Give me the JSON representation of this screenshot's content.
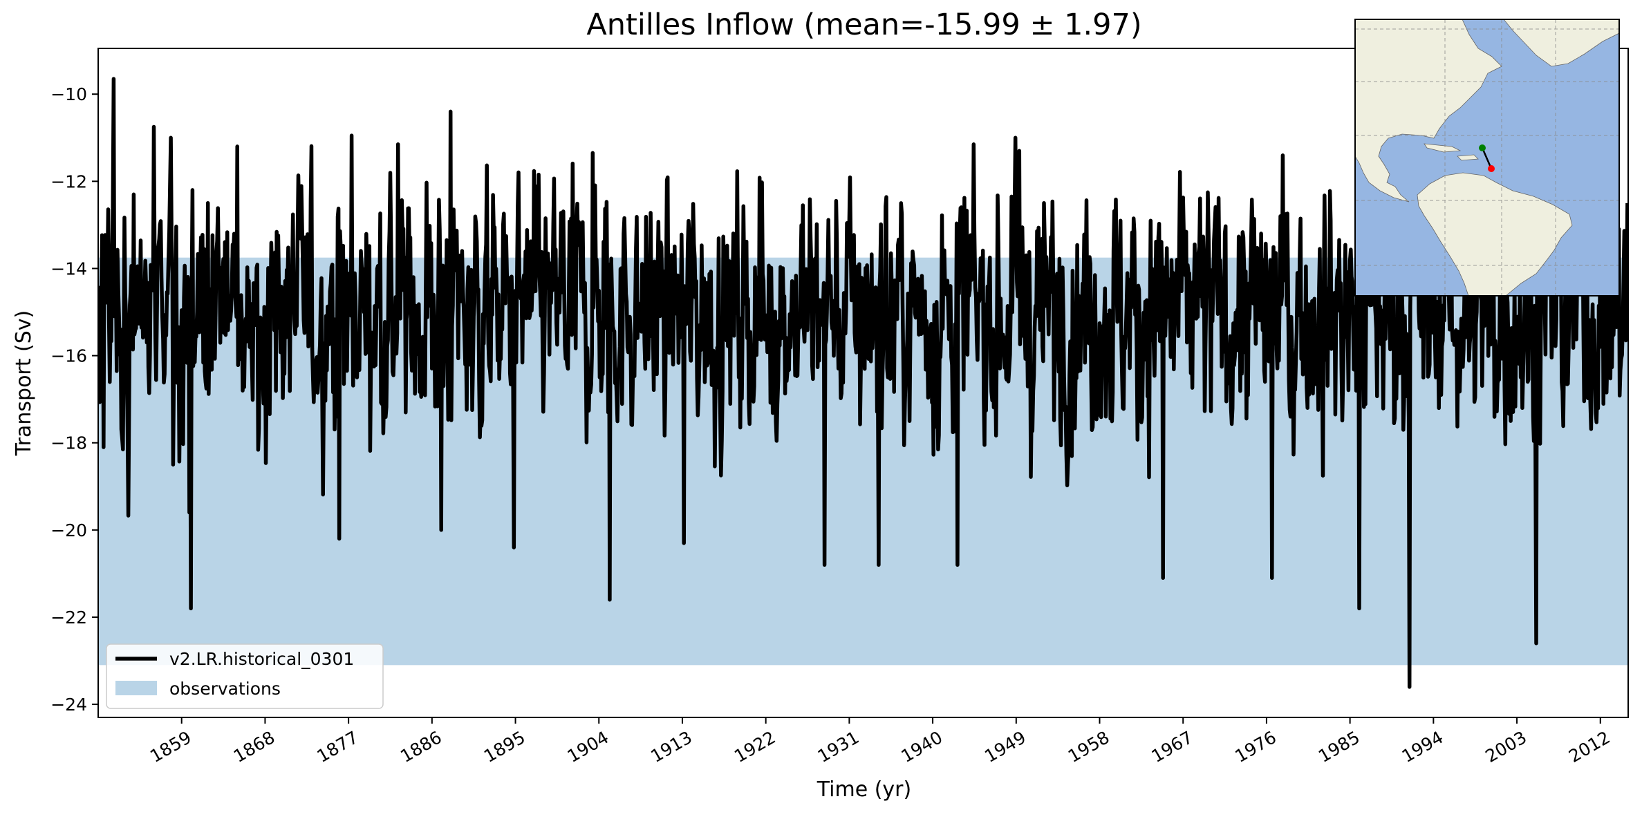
{
  "chart_data": {
    "type": "line",
    "title": "Antilles Inflow (mean=-15.99 ± 1.97)",
    "xlabel": "Time (yr)",
    "ylabel": "Transport (Sv)",
    "xlim": [
      1850,
      2015
    ],
    "ylim": [
      -24.3,
      -8.95
    ],
    "xticks": [
      1859,
      1868,
      1877,
      1886,
      1895,
      1904,
      1913,
      1922,
      1931,
      1940,
      1949,
      1958,
      1967,
      1976,
      1985,
      1994,
      2003,
      2012
    ],
    "yticks": [
      -10,
      -12,
      -14,
      -16,
      -18,
      -20,
      -22,
      -24
    ],
    "grid": false,
    "legend_location": "lower left",
    "observations_band": {
      "name": "observations",
      "y_low": -23.1,
      "y_high": -13.75,
      "color": "#b9d4e7"
    },
    "series": [
      {
        "name": "v2.LR.historical_0301",
        "color": "#000000",
        "sampling": "monthly",
        "x_start": 1850.0,
        "x_end": 2014.92,
        "mean": -15.99,
        "std": 1.97,
        "anchor_points": [
          {
            "x": 1850.0,
            "y": -16.6
          },
          {
            "x": 1850.3,
            "y": -14.7
          },
          {
            "x": 1850.6,
            "y": -18.1
          },
          {
            "x": 1851.7,
            "y": -9.65
          },
          {
            "x": 1853.8,
            "y": -12.3
          },
          {
            "x": 1856.0,
            "y": -10.75
          },
          {
            "x": 1858.1,
            "y": -18.5
          },
          {
            "x": 1859.8,
            "y": -19.6
          },
          {
            "x": 1860.0,
            "y": -21.8
          },
          {
            "x": 1865.0,
            "y": -11.2
          },
          {
            "x": 1876.0,
            "y": -20.2
          },
          {
            "x": 1877.3,
            "y": -10.95
          },
          {
            "x": 1882.3,
            "y": -11.15
          },
          {
            "x": 1887.0,
            "y": -20.0
          },
          {
            "x": 1888.0,
            "y": -10.4
          },
          {
            "x": 1894.8,
            "y": -20.4
          },
          {
            "x": 1903.3,
            "y": -11.35
          },
          {
            "x": 1905.2,
            "y": -21.6
          },
          {
            "x": 1913.2,
            "y": -20.3
          },
          {
            "x": 1928.3,
            "y": -20.8
          },
          {
            "x": 1934.2,
            "y": -20.8
          },
          {
            "x": 1942.7,
            "y": -20.8
          },
          {
            "x": 1949.3,
            "y": -11.3
          },
          {
            "x": 1964.8,
            "y": -21.1
          },
          {
            "x": 1977.5,
            "y": -12.8
          },
          {
            "x": 1976.6,
            "y": -21.1
          },
          {
            "x": 1986.0,
            "y": -21.8
          },
          {
            "x": 1991.4,
            "y": -23.6
          },
          {
            "x": 2005.1,
            "y": -22.6
          },
          {
            "x": 2014.9,
            "y": -12.5
          }
        ]
      }
    ]
  }
}
